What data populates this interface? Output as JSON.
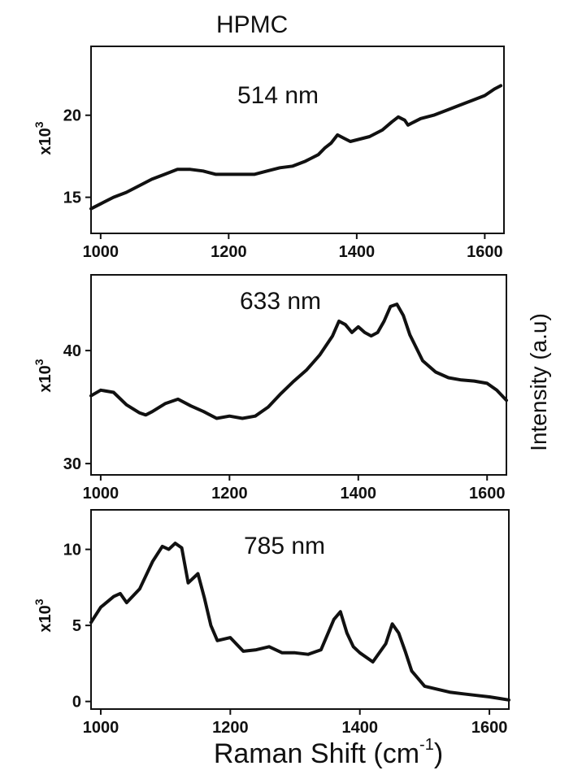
{
  "title": "HPMC",
  "shared_ylabel": "Intensity (a.u)",
  "shared_xlabel_base": "Raman Shift (cm",
  "shared_xlabel_sup": "-1",
  "shared_xlabel_end": ")",
  "chart_data": [
    {
      "type": "line",
      "panel_label": "514 nm",
      "xlim": [
        985,
        1630
      ],
      "ylim": [
        12.8,
        24.2
      ],
      "x_ticks": [
        1000,
        1200,
        1400,
        1600
      ],
      "y_ticks": [
        15,
        20
      ],
      "y_multiplier_base": "x10",
      "y_multiplier_exp": "3",
      "line_color": "#111111",
      "series": [
        {
          "x": [
            985,
            1000,
            1020,
            1040,
            1060,
            1080,
            1100,
            1120,
            1140,
            1160,
            1180,
            1200,
            1220,
            1240,
            1260,
            1280,
            1300,
            1320,
            1340,
            1350,
            1360,
            1370,
            1380,
            1390,
            1400,
            1420,
            1440,
            1455,
            1465,
            1475,
            1480,
            1490,
            1500,
            1520,
            1540,
            1560,
            1580,
            1600,
            1615,
            1625
          ],
          "y": [
            14.3,
            14.6,
            15.0,
            15.3,
            15.7,
            16.1,
            16.4,
            16.7,
            16.7,
            16.6,
            16.4,
            16.4,
            16.4,
            16.4,
            16.6,
            16.8,
            16.9,
            17.2,
            17.6,
            18.0,
            18.3,
            18.8,
            18.6,
            18.4,
            18.5,
            18.7,
            19.1,
            19.6,
            19.9,
            19.7,
            19.4,
            19.6,
            19.8,
            20.0,
            20.3,
            20.6,
            20.9,
            21.2,
            21.6,
            21.8
          ]
        }
      ]
    },
    {
      "type": "line",
      "panel_label": "633 nm",
      "xlim": [
        985,
        1630
      ],
      "ylim": [
        29,
        46.7
      ],
      "x_ticks": [
        1000,
        1200,
        1400,
        1600
      ],
      "y_ticks": [
        30,
        40
      ],
      "y_multiplier_base": "x10",
      "y_multiplier_exp": "3",
      "line_color": "#111111",
      "series": [
        {
          "x": [
            985,
            1000,
            1020,
            1040,
            1060,
            1070,
            1080,
            1100,
            1120,
            1140,
            1160,
            1180,
            1200,
            1220,
            1240,
            1260,
            1280,
            1300,
            1320,
            1340,
            1360,
            1370,
            1380,
            1390,
            1400,
            1410,
            1420,
            1430,
            1440,
            1450,
            1460,
            1470,
            1480,
            1500,
            1520,
            1540,
            1560,
            1580,
            1600,
            1615,
            1630
          ],
          "y": [
            36.0,
            36.5,
            36.3,
            35.2,
            34.5,
            34.3,
            34.6,
            35.3,
            35.7,
            35.1,
            34.6,
            34.0,
            34.2,
            34.0,
            34.2,
            35.0,
            36.2,
            37.3,
            38.3,
            39.6,
            41.3,
            42.6,
            42.3,
            41.6,
            42.1,
            41.6,
            41.3,
            41.6,
            42.6,
            43.9,
            44.1,
            43.1,
            41.4,
            39.1,
            38.1,
            37.6,
            37.4,
            37.3,
            37.1,
            36.5,
            35.6
          ]
        }
      ]
    },
    {
      "type": "line",
      "panel_label": "785 nm",
      "xlim": [
        985,
        1630
      ],
      "ylim": [
        -0.5,
        12.6
      ],
      "x_ticks": [
        1000,
        1200,
        1400,
        1600
      ],
      "y_ticks": [
        0,
        5,
        10
      ],
      "y_multiplier_base": "x10",
      "y_multiplier_exp": "3",
      "line_color": "#111111",
      "series": [
        {
          "x": [
            985,
            1000,
            1020,
            1030,
            1040,
            1060,
            1080,
            1095,
            1105,
            1115,
            1125,
            1135,
            1150,
            1160,
            1170,
            1180,
            1200,
            1220,
            1240,
            1260,
            1280,
            1300,
            1320,
            1340,
            1360,
            1370,
            1380,
            1390,
            1400,
            1420,
            1440,
            1450,
            1460,
            1470,
            1480,
            1500,
            1520,
            1540,
            1560,
            1580,
            1600,
            1615,
            1630
          ],
          "y": [
            5.2,
            6.2,
            6.9,
            7.1,
            6.5,
            7.4,
            9.2,
            10.2,
            10.0,
            10.4,
            10.1,
            7.8,
            8.4,
            6.8,
            5.0,
            4.0,
            4.2,
            3.3,
            3.4,
            3.6,
            3.2,
            3.2,
            3.1,
            3.4,
            5.4,
            5.9,
            4.5,
            3.6,
            3.2,
            2.6,
            3.8,
            5.1,
            4.5,
            3.3,
            2.0,
            1.0,
            0.8,
            0.6,
            0.5,
            0.4,
            0.3,
            0.2,
            0.1
          ]
        }
      ]
    }
  ]
}
